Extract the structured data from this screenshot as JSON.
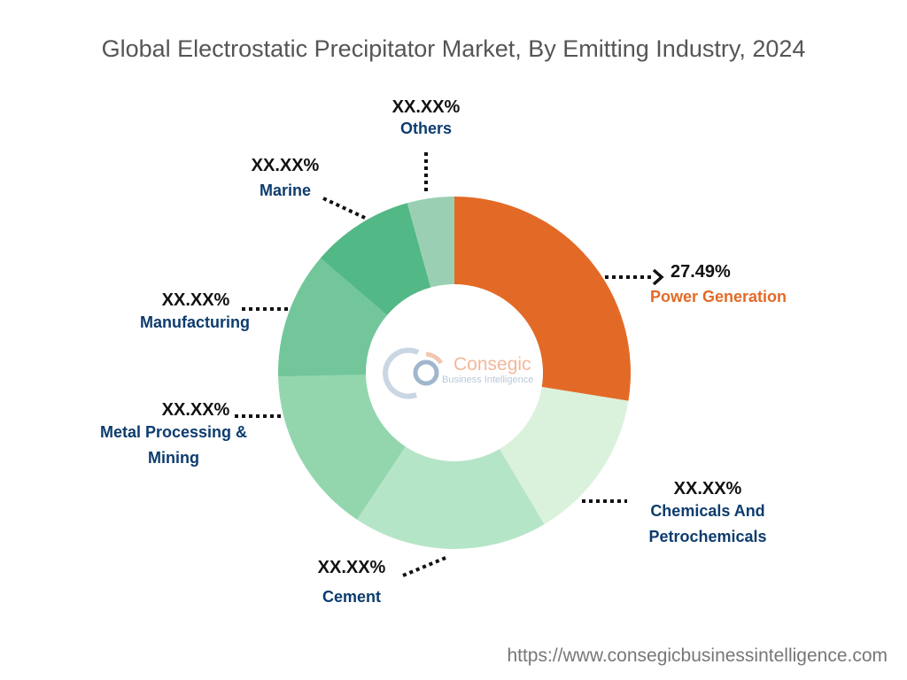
{
  "chart_data": {
    "type": "pie",
    "variant": "donut",
    "title": "Global Electrostatic Precipitator Market, By Emitting Industry, 2024",
    "slices": [
      {
        "label": "Power Generation",
        "value": 27.49,
        "display": "27.49%",
        "color": "#E36A26"
      },
      {
        "label": "Chemicals And Petrochemicals",
        "value": 13.9,
        "display": "XX.XX%",
        "color": "#DAF2DC"
      },
      {
        "label": "Cement",
        "value": 17.8,
        "display": "XX.XX%",
        "color": "#B5E5C7"
      },
      {
        "label": "Metal Processing & Mining",
        "value": 15.3,
        "display": "XX.XX%",
        "color": "#93D6AE"
      },
      {
        "label": "Manufacturing",
        "value": 11.6,
        "display": "XX.XX%",
        "color": "#72C69A"
      },
      {
        "label": "Marine",
        "value": 9.4,
        "display": "XX.XX%",
        "color": "#52B886"
      },
      {
        "label": "Others",
        "value": 4.3,
        "display": "XX.XX%",
        "color": "#9ACFB3"
      }
    ],
    "label_lines": {
      "metal": [
        "Metal Processing &",
        "Mining"
      ],
      "chemicals": [
        "Chemicals And",
        "Petrochemicals"
      ]
    }
  },
  "logo": {
    "name": "Consegic",
    "tagline": "Business Intelligence"
  },
  "footer": {
    "url": "https://www.consegicbusinessintelligence.com"
  }
}
